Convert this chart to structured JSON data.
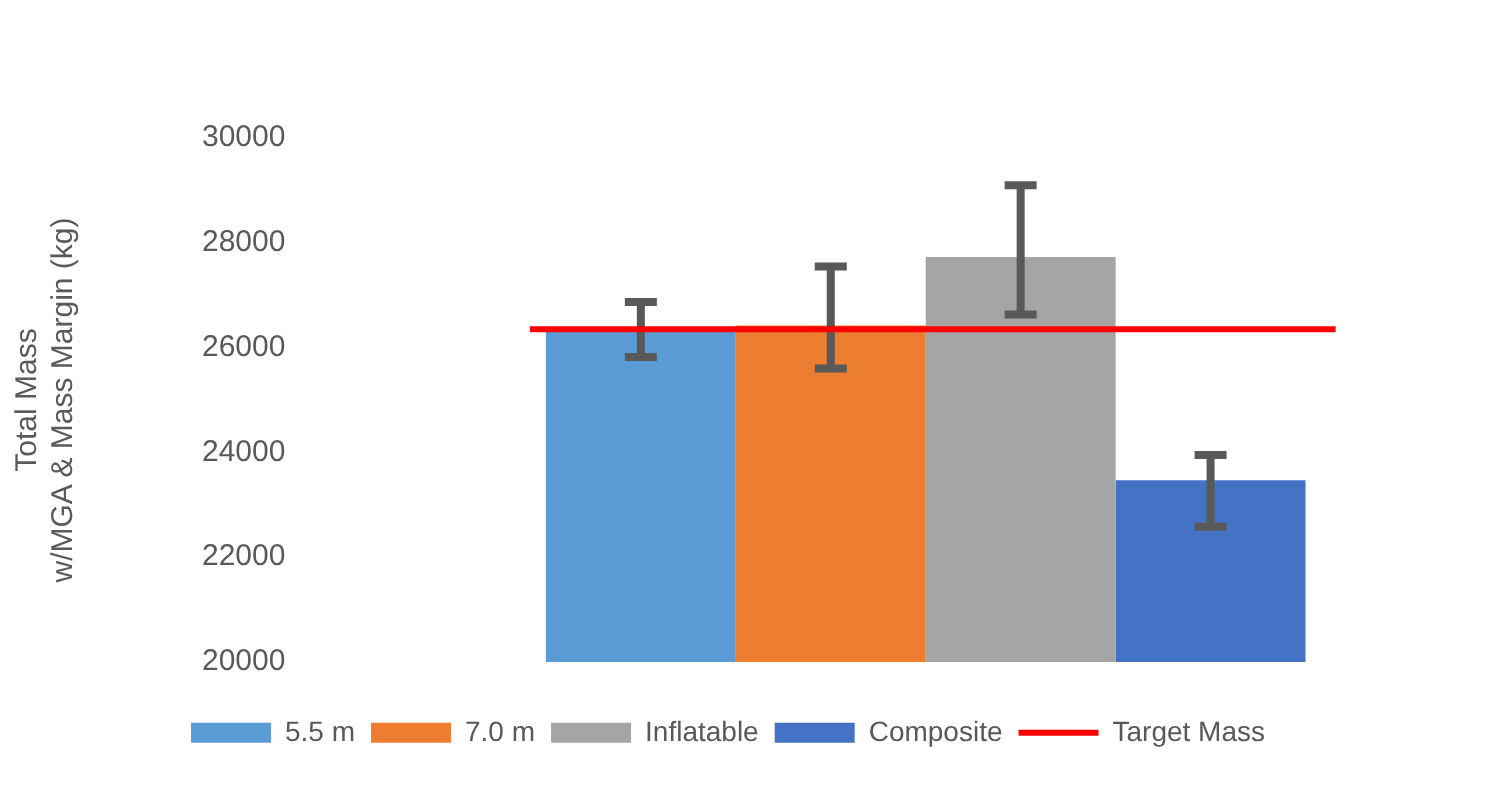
{
  "chart_data": {
    "type": "bar",
    "ylabel": "Total Mass\nw/MGA & Mass Margin (kg)",
    "categories": [
      null
    ],
    "series": [
      {
        "name": "5.5 m",
        "color": "#5b9bd5",
        "values": [
          26350
        ],
        "errors": [
          [
            25820,
            26870
          ]
        ]
      },
      {
        "name": "7.0 m",
        "color": "#ed7d31",
        "values": [
          26420
        ],
        "errors": [
          [
            25600,
            27550
          ]
        ]
      },
      {
        "name": "Inflatable",
        "color": "#a5a5a5",
        "values": [
          27730
        ],
        "errors": [
          [
            26630,
            29100
          ]
        ]
      },
      {
        "name": "Composite",
        "color": "#4472c4",
        "values": [
          23470
        ],
        "errors": [
          [
            22580,
            23950
          ]
        ]
      }
    ],
    "ref_lines": [
      {
        "axis": "y",
        "value": 26350,
        "label": "Target Mass",
        "color": "#ff0000"
      }
    ],
    "ylim": [
      20000,
      30000
    ],
    "yticks": [
      20000,
      22000,
      24000,
      26000,
      28000,
      30000
    ],
    "grid": false,
    "legend": "bottom"
  }
}
